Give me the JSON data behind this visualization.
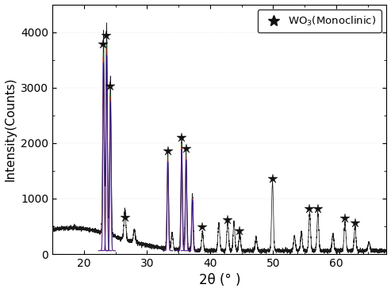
{
  "xlabel": "2θ (° )",
  "ylabel": "Intensity(Counts)",
  "xlim": [
    15,
    68
  ],
  "ylim": [
    0,
    4500
  ],
  "yticks": [
    0,
    1000,
    2000,
    3000,
    4000
  ],
  "xticks": [
    20,
    30,
    40,
    50,
    60
  ],
  "background_color": "#ffffff",
  "peaks": [
    {
      "two_theta": 23.1,
      "intensity": 3700,
      "sigma": 0.12,
      "star": true,
      "star_y": 3780
    },
    {
      "two_theta": 23.6,
      "intensity": 3850,
      "sigma": 0.12,
      "star": true,
      "star_y": 3940
    },
    {
      "two_theta": 24.2,
      "intensity": 2950,
      "sigma": 0.12,
      "star": true,
      "star_y": 3030
    },
    {
      "two_theta": 26.5,
      "intensity": 580,
      "sigma": 0.15,
      "star": true,
      "star_y": 660
    },
    {
      "two_theta": 28.0,
      "intensity": 280,
      "sigma": 0.15,
      "star": false,
      "star_y": 0
    },
    {
      "two_theta": 33.3,
      "intensity": 1780,
      "sigma": 0.13,
      "star": true,
      "star_y": 1860
    },
    {
      "two_theta": 34.0,
      "intensity": 350,
      "sigma": 0.13,
      "star": false,
      "star_y": 0
    },
    {
      "two_theta": 35.5,
      "intensity": 2020,
      "sigma": 0.13,
      "star": true,
      "star_y": 2100
    },
    {
      "two_theta": 36.2,
      "intensity": 1820,
      "sigma": 0.13,
      "star": true,
      "star_y": 1900
    },
    {
      "two_theta": 37.2,
      "intensity": 1050,
      "sigma": 0.13,
      "star": false,
      "star_y": 0
    },
    {
      "two_theta": 38.8,
      "intensity": 400,
      "sigma": 0.13,
      "star": true,
      "star_y": 480
    },
    {
      "two_theta": 41.4,
      "intensity": 560,
      "sigma": 0.14,
      "star": false,
      "star_y": 0
    },
    {
      "two_theta": 42.8,
      "intensity": 580,
      "sigma": 0.14,
      "star": true,
      "star_y": 620
    },
    {
      "two_theta": 43.8,
      "intensity": 560,
      "sigma": 0.14,
      "star": false,
      "star_y": 0
    },
    {
      "two_theta": 44.7,
      "intensity": 380,
      "sigma": 0.14,
      "star": true,
      "star_y": 420
    },
    {
      "two_theta": 47.3,
      "intensity": 300,
      "sigma": 0.14,
      "star": false,
      "star_y": 0
    },
    {
      "two_theta": 49.9,
      "intensity": 1280,
      "sigma": 0.14,
      "star": true,
      "star_y": 1360
    },
    {
      "two_theta": 53.4,
      "intensity": 320,
      "sigma": 0.14,
      "star": false,
      "star_y": 0
    },
    {
      "two_theta": 54.5,
      "intensity": 400,
      "sigma": 0.14,
      "star": false,
      "star_y": 0
    },
    {
      "two_theta": 55.8,
      "intensity": 730,
      "sigma": 0.14,
      "star": true,
      "star_y": 810
    },
    {
      "two_theta": 57.1,
      "intensity": 740,
      "sigma": 0.14,
      "star": true,
      "star_y": 820
    },
    {
      "two_theta": 59.5,
      "intensity": 360,
      "sigma": 0.14,
      "star": false,
      "star_y": 0
    },
    {
      "two_theta": 61.4,
      "intensity": 580,
      "sigma": 0.14,
      "star": true,
      "star_y": 640
    },
    {
      "two_theta": 63.0,
      "intensity": 500,
      "sigma": 0.14,
      "star": true,
      "star_y": 560
    },
    {
      "two_theta": 65.2,
      "intensity": 220,
      "sigma": 0.14,
      "star": false,
      "star_y": 0
    }
  ],
  "colored_peaks": [
    {
      "two_theta": 23.1,
      "intensity": 3700,
      "sigma": 0.1
    },
    {
      "two_theta": 23.6,
      "intensity": 3850,
      "sigma": 0.1
    },
    {
      "two_theta": 24.2,
      "intensity": 2950,
      "sigma": 0.1
    },
    {
      "two_theta": 33.3,
      "intensity": 1780,
      "sigma": 0.1
    },
    {
      "two_theta": 35.5,
      "intensity": 2020,
      "sigma": 0.1
    },
    {
      "two_theta": 36.2,
      "intensity": 1820,
      "sigma": 0.1
    },
    {
      "two_theta": 37.2,
      "intensity": 1050,
      "sigma": 0.1
    }
  ],
  "star_color": "#111111",
  "star_size": 9,
  "figsize": [
    4.93,
    3.69
  ],
  "dpi": 100
}
